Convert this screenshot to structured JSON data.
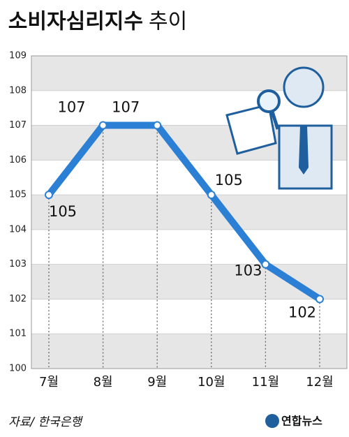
{
  "chart_data": {
    "type": "line",
    "title": "소비자심리지수",
    "title_suffix": "추이",
    "categories": [
      "7월",
      "8월",
      "9월",
      "10월",
      "11월",
      "12월"
    ],
    "values": [
      105,
      107,
      107,
      105,
      103,
      102
    ],
    "color": "#2b7fd4",
    "ylim": [
      100,
      109
    ],
    "yticks": [
      100,
      101,
      102,
      103,
      104,
      105,
      106,
      107,
      108,
      109
    ],
    "grid": true,
    "source": "자료/ 한국은행",
    "logo": "연합뉴스"
  }
}
